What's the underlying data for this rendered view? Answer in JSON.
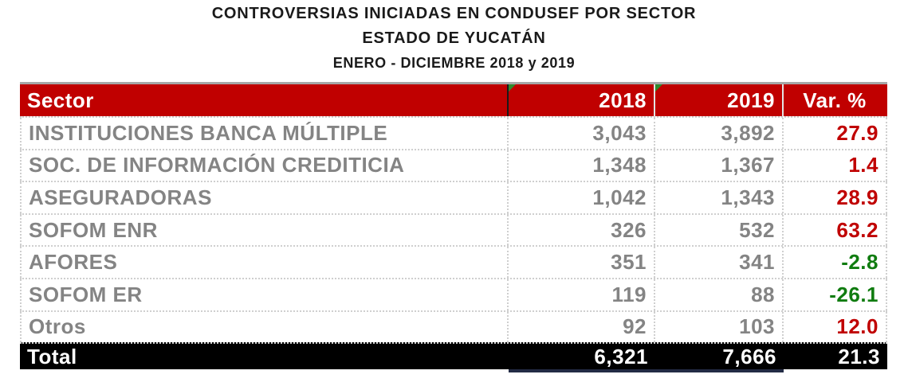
{
  "title": {
    "line1": "CONTROVERSIAS INICIADAS EN CONDUSEF POR SECTOR",
    "line2": "ESTADO DE YUCATÁN",
    "line3": "ENERO - DICIEMBRE 2018 y 2019"
  },
  "table": {
    "columns": {
      "sector": "Sector",
      "y2018": "2018",
      "y2019": "2019",
      "variation": "Var. %"
    },
    "rows": [
      {
        "sector": "INSTITUCIONES BANCA MÚLTIPLE",
        "y2018": "3,043",
        "y2019": "3,892",
        "var": "27.9"
      },
      {
        "sector": "SOC. DE INFORMACIÓN CREDITICIA",
        "y2018": "1,348",
        "y2019": "1,367",
        "var": "1.4"
      },
      {
        "sector": "ASEGURADORAS",
        "y2018": "1,042",
        "y2019": "1,343",
        "var": "28.9"
      },
      {
        "sector": "SOFOM ENR",
        "y2018": "326",
        "y2019": "532",
        "var": "63.2"
      },
      {
        "sector": "AFORES",
        "y2018": "351",
        "y2019": "341",
        "var": "-2.8"
      },
      {
        "sector": "SOFOM ER",
        "y2018": "119",
        "y2019": "88",
        "var": "-26.1"
      },
      {
        "sector": "Otros",
        "y2018": "92",
        "y2019": "103",
        "var": "12.0"
      }
    ],
    "total": {
      "sector": "Total",
      "y2018": "6,321",
      "y2019": "7,666",
      "var": "21.3"
    }
  },
  "colors": {
    "header_background": "#C00000",
    "positive_variation": "#C00000",
    "negative_variation": "#107C10",
    "total_background": "#000000",
    "row_text": "#848484",
    "dotted_border": "#cfcfcf",
    "total_underline": "#232B45",
    "error_indicator_green": "#2E8B2E"
  },
  "icons": {
    "error_indicator": "excel-green-corner-triangle"
  },
  "chart_data": {
    "type": "table",
    "title": "CONTROVERSIAS INICIADAS EN CONDUSEF POR SECTOR",
    "subtitle": "ESTADO DE YUCATÁN",
    "period": "ENERO - DICIEMBRE 2018 y 2019",
    "columns": [
      "Sector",
      "2018",
      "2019",
      "Var. %"
    ],
    "rows": [
      [
        "INSTITUCIONES BANCA MÚLTIPLE",
        3043,
        3892,
        27.9
      ],
      [
        "SOC. DE INFORMACIÓN CREDITICIA",
        1348,
        1367,
        1.4
      ],
      [
        "ASEGURADORAS",
        1042,
        1343,
        28.9
      ],
      [
        "SOFOM ENR",
        326,
        532,
        63.2
      ],
      [
        "AFORES",
        351,
        341,
        -2.8
      ],
      [
        "SOFOM ER",
        119,
        88,
        -26.1
      ],
      [
        "Otros",
        92,
        103,
        12.0
      ]
    ],
    "total": [
      "Total",
      6321,
      7666,
      21.3
    ]
  }
}
